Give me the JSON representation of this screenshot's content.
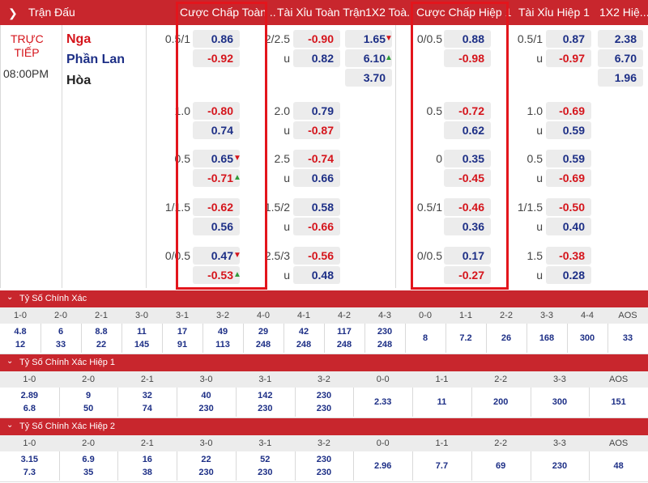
{
  "header": {
    "chevron": "chevron-right-icon",
    "match": "Trận Đấu",
    "ah_full": "Cược Chấp Toàn ..",
    "ou_full": "Tài Xỉu Toàn Trận",
    "x12_full": "1X2 Toà..",
    "ah_half": "Cược Chấp Hiệp 1",
    "ou_half": "Tài Xỉu Hiệp 1",
    "x12_half": "1X2 Hiệ..."
  },
  "match": {
    "status_line1": "TRỰC",
    "status_line2": "TIẾP",
    "time": "08:00PM",
    "home": "Nga",
    "away": "Phần Lan",
    "draw": "Hòa"
  },
  "odds_rows": [
    {
      "ah_line": "0.5/1",
      "ah_home": "0.86",
      "ah_away": "-0.92",
      "ou_line": "2/2.5",
      "ou_over": "-0.90",
      "ou_under_label": "u",
      "ou_under": "0.82",
      "x12_home": "1.65",
      "x12_away": "6.10",
      "x12_draw": "3.70",
      "h_ah_line": "0/0.5",
      "h_ah_home": "0.88",
      "h_ah_away": "-0.98",
      "h_ou_line": "0.5/1",
      "h_ou_over": "0.87",
      "h_ou_under_label": "u",
      "h_ou_under": "-0.97",
      "h_x12_home": "2.38",
      "h_x12_away": "6.70",
      "h_x12_draw": "1.96"
    },
    {
      "ah_line": "1.0",
      "ah_home": "-0.80",
      "ah_away": "0.74",
      "ou_line": "2.0",
      "ou_over": "0.79",
      "ou_under_label": "u",
      "ou_under": "-0.87",
      "h_ah_line": "0.5",
      "h_ah_home": "-0.72",
      "h_ah_away": "0.62",
      "h_ou_line": "1.0",
      "h_ou_over": "-0.69",
      "h_ou_under_label": "u",
      "h_ou_under": "0.59"
    },
    {
      "ah_line": "0.5",
      "ah_home": "0.65",
      "ah_away": "-0.71",
      "ou_line": "2.5",
      "ou_over": "-0.74",
      "ou_under_label": "u",
      "ou_under": "0.66",
      "h_ah_line": "0",
      "h_ah_home": "0.35",
      "h_ah_away": "-0.45",
      "h_ou_line": "0.5",
      "h_ou_over": "0.59",
      "h_ou_under_label": "u",
      "h_ou_under": "-0.69"
    },
    {
      "ah_line": "1/1.5",
      "ah_home": "-0.62",
      "ah_away": "0.56",
      "ou_line": "1.5/2",
      "ou_over": "0.58",
      "ou_under_label": "u",
      "ou_under": "-0.66",
      "h_ah_line": "0.5/1",
      "h_ah_home": "-0.46",
      "h_ah_away": "0.36",
      "h_ou_line": "1/1.5",
      "h_ou_over": "-0.50",
      "h_ou_under_label": "u",
      "h_ou_under": "0.40"
    },
    {
      "ah_line": "0/0.5",
      "ah_home": "0.47",
      "ah_away": "-0.53",
      "ou_line": "2.5/3",
      "ou_over": "-0.56",
      "ou_under_label": "u",
      "ou_under": "0.48",
      "h_ah_line": "0/0.5",
      "h_ah_home": "0.17",
      "h_ah_away": "-0.27",
      "h_ou_line": "1.5",
      "h_ou_over": "-0.38",
      "h_ou_under_label": "u",
      "h_ou_under": "0.28"
    }
  ],
  "correct_score": {
    "title": "Tỷ Số Chính Xác",
    "headers": [
      "1-0",
      "2-0",
      "2-1",
      "3-0",
      "3-1",
      "3-2",
      "4-0",
      "4-1",
      "4-2",
      "4-3",
      "0-0",
      "1-1",
      "2-2",
      "3-3",
      "4-4",
      "AOS"
    ],
    "home": [
      "4.8",
      "6",
      "8.8",
      "11",
      "17",
      "49",
      "29",
      "42",
      "117",
      "230",
      "8",
      "7.2",
      "26",
      "168",
      "300",
      "33"
    ],
    "away": [
      "12",
      "33",
      "22",
      "145",
      "91",
      "113",
      "248",
      "248",
      "248",
      "248",
      "",
      "",
      "",
      "",
      "",
      ""
    ]
  },
  "correct_score_h1": {
    "title": "Tỷ Số Chính Xác Hiệp 1",
    "headers": [
      "1-0",
      "2-0",
      "2-1",
      "3-0",
      "3-1",
      "3-2",
      "0-0",
      "1-1",
      "2-2",
      "3-3",
      "AOS"
    ],
    "home": [
      "2.89",
      "9",
      "32",
      "40",
      "142",
      "230",
      "2.33",
      "11",
      "200",
      "300",
      "151"
    ],
    "away": [
      "6.8",
      "50",
      "74",
      "230",
      "230",
      "230",
      "",
      "",
      "",
      "",
      ""
    ]
  },
  "correct_score_h2": {
    "title": "Tỷ Số Chính Xác Hiệp 2",
    "headers": [
      "1-0",
      "2-0",
      "2-1",
      "3-0",
      "3-1",
      "3-2",
      "0-0",
      "1-1",
      "2-2",
      "3-3",
      "AOS"
    ],
    "home": [
      "3.15",
      "6.9",
      "16",
      "22",
      "52",
      "230",
      "2.96",
      "7.7",
      "69",
      "230",
      "48"
    ],
    "away": [
      "7.3",
      "35",
      "38",
      "230",
      "230",
      "230",
      "",
      "",
      "",
      "",
      ""
    ]
  },
  "colors": {
    "brand_red": "#c8262d",
    "positive": "#1d2f86",
    "negative": "#d5141b",
    "highlight_box": "#e3151c"
  }
}
